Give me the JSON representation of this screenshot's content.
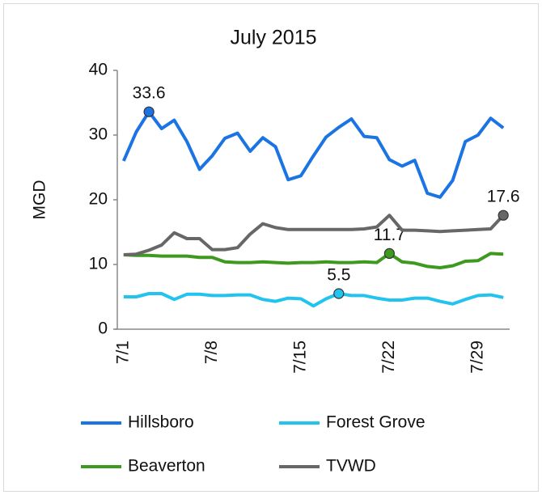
{
  "chart_data": {
    "type": "line",
    "title": "July 2015",
    "y_label": "MGD",
    "categories": [
      "7/1",
      null,
      null,
      null,
      null,
      null,
      null,
      "7/8",
      null,
      null,
      null,
      null,
      null,
      null,
      "7/15",
      null,
      null,
      null,
      null,
      null,
      null,
      "7/22",
      null,
      null,
      null,
      null,
      null,
      null,
      "7/29",
      null,
      null
    ],
    "ylim": [
      0,
      40
    ],
    "yticks": [
      0,
      10,
      20,
      30,
      40
    ],
    "grid": false,
    "legend": "bottom",
    "series": [
      {
        "name": "Hillsboro",
        "color": "#1b74e4",
        "values": [
          26,
          30.5,
          33.6,
          31,
          32.3,
          29,
          24.7,
          26.8,
          29.5,
          30.3,
          27.5,
          29.6,
          28.2,
          23.1,
          23.7,
          26.8,
          29.7,
          31.2,
          32.5,
          29.8,
          29.6,
          26.2,
          25.2,
          26.1,
          21,
          20.4,
          23,
          29,
          30,
          32.6,
          31.1
        ],
        "value_labels": [
          null,
          null,
          "33.6",
          null,
          null,
          null,
          null,
          null,
          null,
          null,
          null,
          null,
          null,
          null,
          null,
          null,
          null,
          null,
          null,
          null,
          null,
          null,
          null,
          null,
          null,
          null,
          null,
          null,
          null,
          null,
          null
        ]
      },
      {
        "name": "Forest Grove",
        "color": "#22c3ee",
        "values": [
          5,
          5,
          5.5,
          5.5,
          4.6,
          5.4,
          5.4,
          5.2,
          5.2,
          5.3,
          5.3,
          4.6,
          4.3,
          4.8,
          4.7,
          3.6,
          4.7,
          5.5,
          5.2,
          5.2,
          4.8,
          4.5,
          4.5,
          4.8,
          4.8,
          4.3,
          3.9,
          4.6,
          5.2,
          5.3,
          4.9
        ],
        "value_labels": [
          null,
          null,
          null,
          null,
          null,
          null,
          null,
          null,
          null,
          null,
          null,
          null,
          null,
          null,
          null,
          null,
          null,
          "5.5",
          null,
          null,
          null,
          null,
          null,
          null,
          null,
          null,
          null,
          null,
          null,
          null,
          null
        ]
      },
      {
        "name": "Beaverton",
        "color": "#3d9a1f",
        "values": [
          11.5,
          11.4,
          11.4,
          11.3,
          11.3,
          11.3,
          11.1,
          11.1,
          10.4,
          10.3,
          10.3,
          10.4,
          10.3,
          10.2,
          10.3,
          10.3,
          10.4,
          10.3,
          10.3,
          10.4,
          10.3,
          11.7,
          10.4,
          10.2,
          9.7,
          9.5,
          9.8,
          10.5,
          10.6,
          11.7,
          11.6
        ],
        "value_labels": [
          null,
          null,
          null,
          null,
          null,
          null,
          null,
          null,
          null,
          null,
          null,
          null,
          null,
          null,
          null,
          null,
          null,
          null,
          null,
          null,
          null,
          "11.7",
          null,
          null,
          null,
          null,
          null,
          null,
          null,
          null,
          null
        ]
      },
      {
        "name": "TVWD",
        "color": "#676767",
        "values": [
          11.5,
          11.6,
          12.2,
          13,
          14.9,
          14,
          14,
          12.3,
          12.3,
          12.6,
          14.7,
          16.3,
          15.7,
          15.4,
          15.4,
          15.4,
          15.4,
          15.4,
          15.4,
          15.5,
          15.8,
          17.6,
          15.3,
          15.3,
          15.2,
          15.1,
          15.2,
          15.3,
          15.4,
          15.5,
          17.6
        ],
        "value_labels": [
          null,
          null,
          null,
          null,
          null,
          null,
          null,
          null,
          null,
          null,
          null,
          null,
          null,
          null,
          null,
          null,
          null,
          null,
          null,
          null,
          null,
          null,
          null,
          null,
          null,
          null,
          null,
          null,
          null,
          null,
          "17.6"
        ]
      }
    ]
  }
}
